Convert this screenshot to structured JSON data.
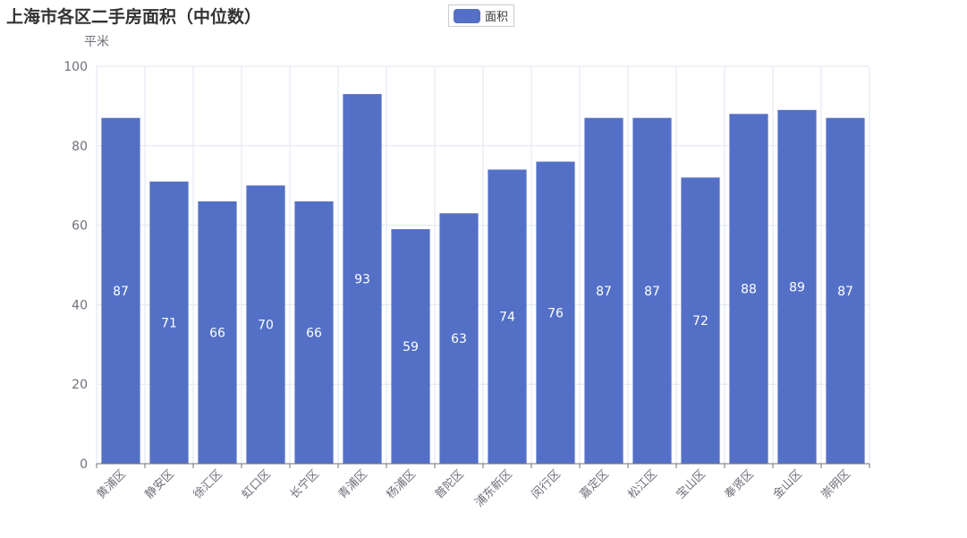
{
  "chart_data": {
    "type": "bar",
    "title": "上海市各区二手房面积（中位数）",
    "ylabel": "平米",
    "xlabel": "",
    "ylim": [
      0,
      100
    ],
    "yticks": [
      0,
      20,
      40,
      60,
      80,
      100
    ],
    "grid": true,
    "legend": "top-center",
    "categories": [
      "黄浦区",
      "静安区",
      "徐汇区",
      "虹口区",
      "长宁区",
      "青浦区",
      "杨浦区",
      "普陀区",
      "浦东新区",
      "闵行区",
      "嘉定区",
      "松江区",
      "宝山区",
      "奉贤区",
      "金山区",
      "崇明区"
    ],
    "series": [
      {
        "name": "面积",
        "color": "#5470c6",
        "values": [
          87,
          71,
          66,
          70,
          66,
          93,
          59,
          63,
          74,
          76,
          87,
          87,
          72,
          88,
          89,
          87
        ]
      }
    ]
  }
}
